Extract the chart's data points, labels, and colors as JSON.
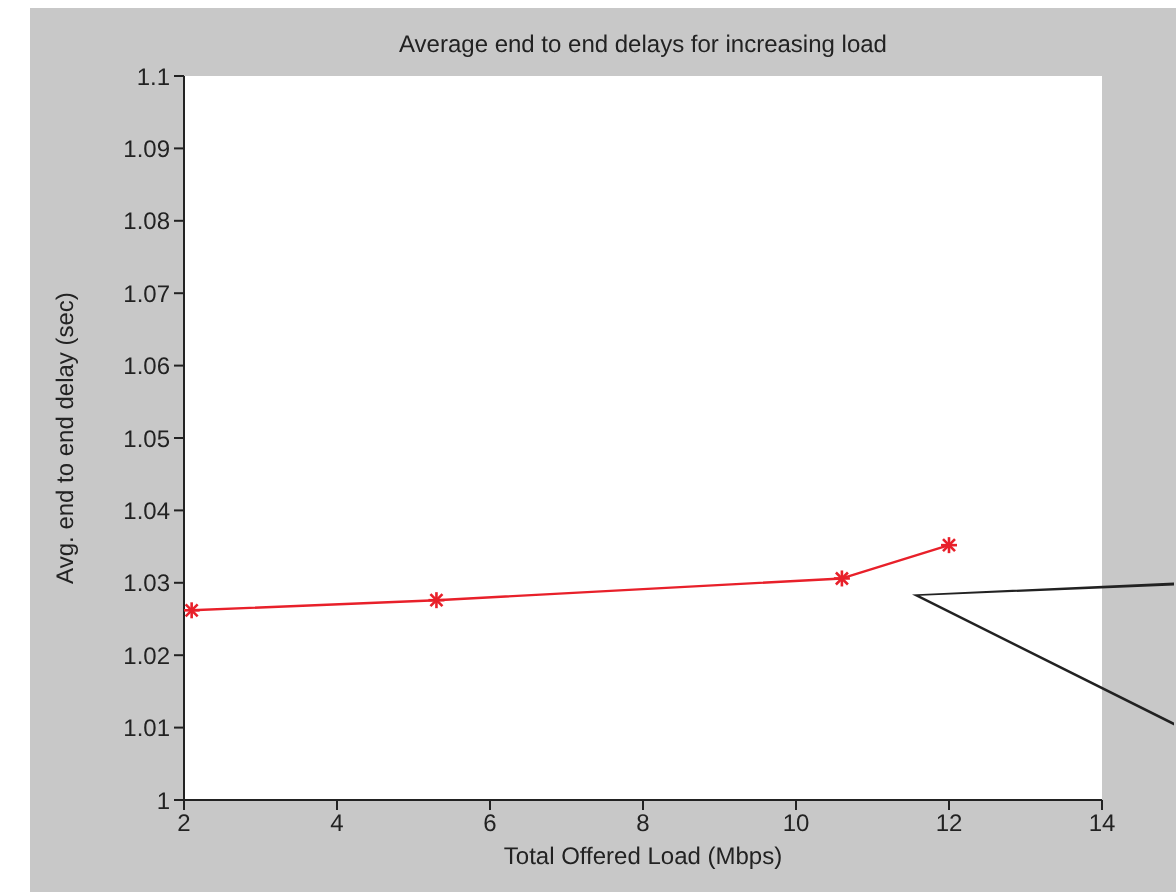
{
  "chart_data": {
    "type": "line",
    "title": "Average end to end delays for increasing load",
    "xlabel": "Total Offered Load (Mbps)",
    "ylabel": "Avg. end to end delay (sec)",
    "x": [
      2.1,
      5.3,
      10.6,
      12
    ],
    "series": [
      {
        "color": "#e8202a",
        "values": [
          1.0262,
          1.0276,
          1.0306,
          1.0352
        ]
      }
    ],
    "xlim": [
      2,
      14
    ],
    "xticks": [
      2,
      4,
      6,
      8,
      10,
      12,
      14
    ],
    "ylim": [
      1,
      1.1
    ],
    "yticks": [
      1,
      1.01,
      1.02,
      1.03,
      1.04,
      1.05,
      1.06,
      1.07,
      1.08,
      1.09,
      1.1
    ],
    "marker": "cross",
    "line_style": "solid"
  }
}
